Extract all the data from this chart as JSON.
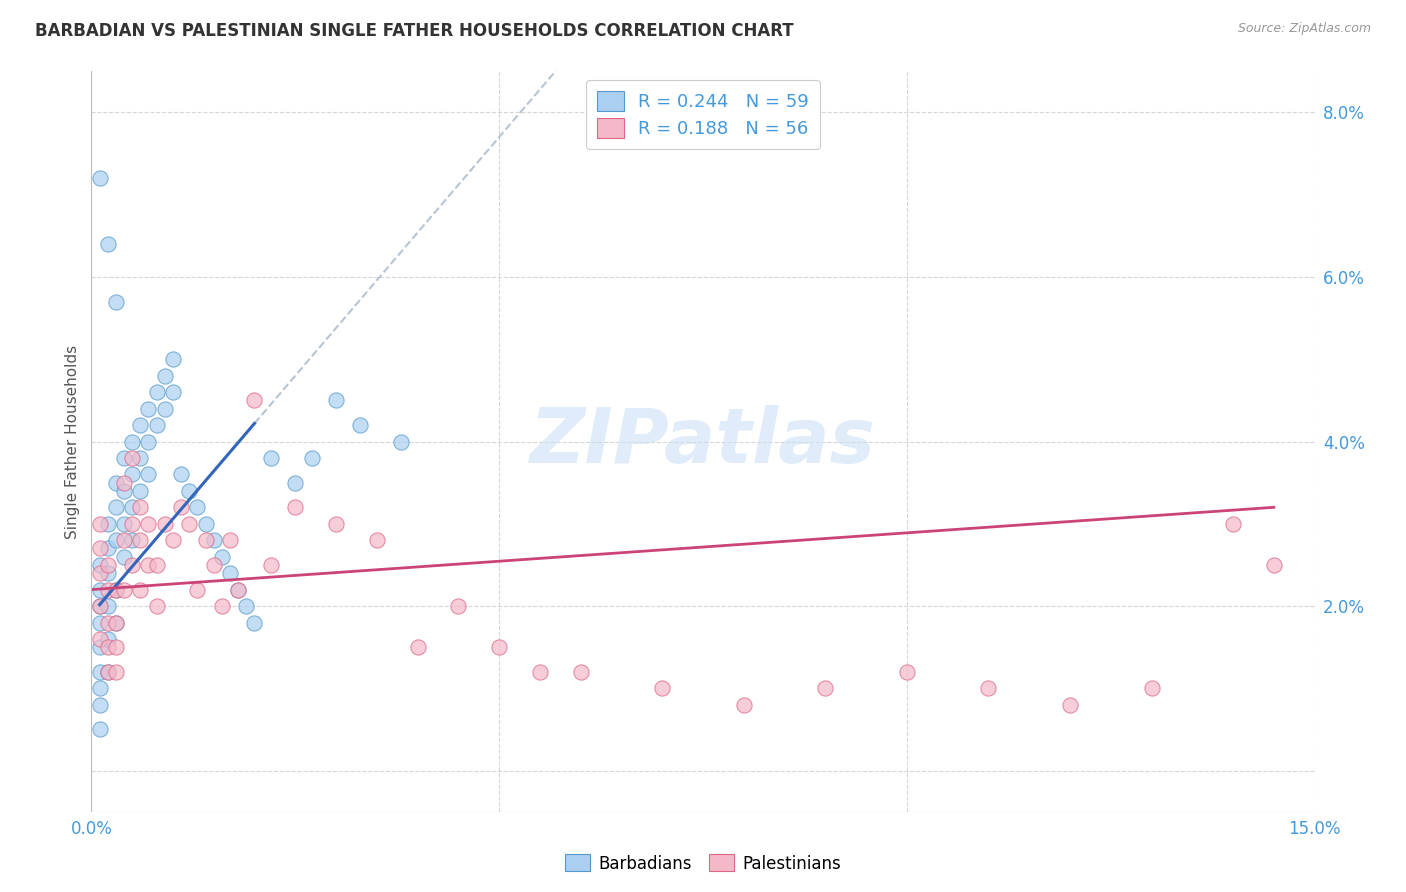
{
  "title": "BARBADIAN VS PALESTINIAN SINGLE FATHER HOUSEHOLDS CORRELATION CHART",
  "source": "Source: ZipAtlas.com",
  "ylabel": "Single Father Households",
  "xlim": [
    0.0,
    0.15
  ],
  "ylim": [
    -0.005,
    0.085
  ],
  "barbadian_color": "#aacff0",
  "barbadian_edge_color": "#5599cc",
  "barbadian_line_color": "#3366bb",
  "palestinian_color": "#f5b8c8",
  "palestinian_edge_color": "#dd6688",
  "palestinian_line_color": "#cc4477",
  "legend_R1": "0.244",
  "legend_N1": "59",
  "legend_R2": "0.188",
  "legend_N2": "56",
  "watermark_text": "ZIPatlas",
  "watermark_color": "#cce0f5",
  "background_color": "#ffffff",
  "grid_color": "#cccccc",
  "tick_color": "#4499dd",
  "title_color": "#333333",
  "label_color": "#555555",
  "barbadian_x": [
    0.001,
    0.001,
    0.001,
    0.001,
    0.001,
    0.001,
    0.001,
    0.001,
    0.001,
    0.002,
    0.002,
    0.002,
    0.002,
    0.002,
    0.002,
    0.003,
    0.003,
    0.003,
    0.003,
    0.003,
    0.004,
    0.004,
    0.004,
    0.004,
    0.005,
    0.005,
    0.005,
    0.005,
    0.006,
    0.006,
    0.006,
    0.007,
    0.007,
    0.007,
    0.008,
    0.008,
    0.009,
    0.009,
    0.01,
    0.01,
    0.011,
    0.012,
    0.013,
    0.014,
    0.015,
    0.016,
    0.017,
    0.018,
    0.019,
    0.02,
    0.022,
    0.025,
    0.027,
    0.03,
    0.033,
    0.038,
    0.001,
    0.002,
    0.003
  ],
  "barbadian_y": [
    0.025,
    0.022,
    0.02,
    0.018,
    0.015,
    0.012,
    0.01,
    0.008,
    0.005,
    0.03,
    0.027,
    0.024,
    0.02,
    0.016,
    0.012,
    0.035,
    0.032,
    0.028,
    0.022,
    0.018,
    0.038,
    0.034,
    0.03,
    0.026,
    0.04,
    0.036,
    0.032,
    0.028,
    0.042,
    0.038,
    0.034,
    0.044,
    0.04,
    0.036,
    0.046,
    0.042,
    0.048,
    0.044,
    0.05,
    0.046,
    0.036,
    0.034,
    0.032,
    0.03,
    0.028,
    0.026,
    0.024,
    0.022,
    0.02,
    0.018,
    0.038,
    0.035,
    0.038,
    0.045,
    0.042,
    0.04,
    0.072,
    0.064,
    0.057
  ],
  "palestinian_x": [
    0.001,
    0.001,
    0.001,
    0.001,
    0.001,
    0.002,
    0.002,
    0.002,
    0.002,
    0.002,
    0.003,
    0.003,
    0.003,
    0.003,
    0.004,
    0.004,
    0.004,
    0.005,
    0.005,
    0.005,
    0.006,
    0.006,
    0.006,
    0.007,
    0.007,
    0.008,
    0.008,
    0.009,
    0.01,
    0.011,
    0.012,
    0.013,
    0.014,
    0.015,
    0.016,
    0.017,
    0.018,
    0.02,
    0.022,
    0.025,
    0.03,
    0.035,
    0.04,
    0.045,
    0.05,
    0.055,
    0.06,
    0.07,
    0.08,
    0.09,
    0.1,
    0.11,
    0.12,
    0.13,
    0.14,
    0.145
  ],
  "palestinian_y": [
    0.03,
    0.027,
    0.024,
    0.02,
    0.016,
    0.025,
    0.022,
    0.018,
    0.015,
    0.012,
    0.022,
    0.018,
    0.015,
    0.012,
    0.035,
    0.028,
    0.022,
    0.038,
    0.03,
    0.025,
    0.032,
    0.028,
    0.022,
    0.03,
    0.025,
    0.025,
    0.02,
    0.03,
    0.028,
    0.032,
    0.03,
    0.022,
    0.028,
    0.025,
    0.02,
    0.028,
    0.022,
    0.045,
    0.025,
    0.032,
    0.03,
    0.028,
    0.015,
    0.02,
    0.015,
    0.012,
    0.012,
    0.01,
    0.008,
    0.01,
    0.012,
    0.01,
    0.008,
    0.01,
    0.03,
    0.025
  ]
}
